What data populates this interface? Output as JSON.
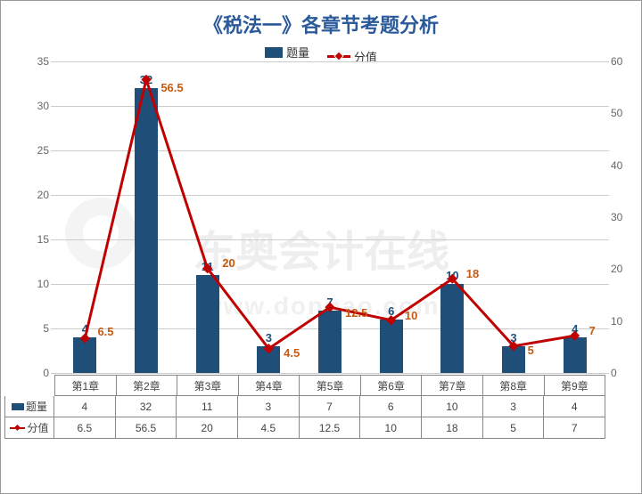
{
  "title": "《税法一》各章节考题分析",
  "watermark_main": "东奥会计在线",
  "watermark_sub": "www.dongao.com",
  "legend": {
    "bar": "题量",
    "line": "分值"
  },
  "chart": {
    "type": "bar+line",
    "categories": [
      "第1章",
      "第2章",
      "第3章",
      "第4章",
      "第5章",
      "第6章",
      "第7章",
      "第8章",
      "第9章"
    ],
    "series_bar": {
      "name": "题量",
      "values": [
        4,
        32,
        11,
        3,
        7,
        6,
        10,
        3,
        4
      ],
      "color": "#1f4e79"
    },
    "series_line": {
      "name": "分值",
      "values": [
        6.5,
        56.5,
        20,
        4.5,
        12.5,
        10,
        18,
        5,
        7
      ],
      "color": "#c00000",
      "marker": "diamond",
      "line_width": 3
    },
    "y_left": {
      "min": 0,
      "max": 35,
      "step": 5
    },
    "y_right": {
      "min": 0,
      "max": 60,
      "step": 10
    },
    "background_color": "#ffffff",
    "grid_color": "#cccccc",
    "label_fontsize": 13,
    "bar_label_color": "#1f4e79",
    "line_label_color": "#c55a11",
    "axis_label_color": "#666666"
  }
}
